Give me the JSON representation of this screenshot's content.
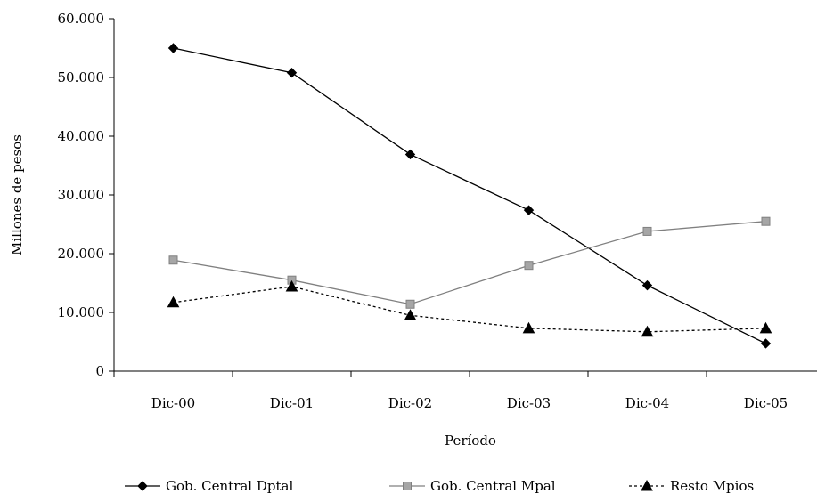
{
  "chart_data": {
    "type": "line",
    "title": "",
    "xlabel": "Período",
    "ylabel": "Millones de pesos",
    "categories": [
      "Dic-00",
      "Dic-01",
      "Dic-02",
      "Dic-03",
      "Dic-04",
      "Dic-05"
    ],
    "yticks": [
      "0",
      "10.000",
      "20.000",
      "30.000",
      "40.000",
      "50.000",
      "60.000"
    ],
    "ylim": [
      0,
      60000
    ],
    "grid": false,
    "legend_position": "bottom",
    "series": [
      {
        "name": "Gob. Central Dptal",
        "values": [
          55000,
          50800,
          36900,
          27400,
          14600,
          4700
        ],
        "color": "#000000",
        "marker": "diamond",
        "line_style": "solid"
      },
      {
        "name": "Gob. Central Mpal",
        "values": [
          18900,
          15500,
          11400,
          18000,
          23800,
          25500
        ],
        "color": "#808080",
        "marker": "square",
        "line_style": "solid"
      },
      {
        "name": "Resto Mpios",
        "values": [
          11700,
          14400,
          9500,
          7300,
          6700,
          7300
        ],
        "color": "#000000",
        "marker": "triangle",
        "line_style": "dotted"
      }
    ]
  }
}
